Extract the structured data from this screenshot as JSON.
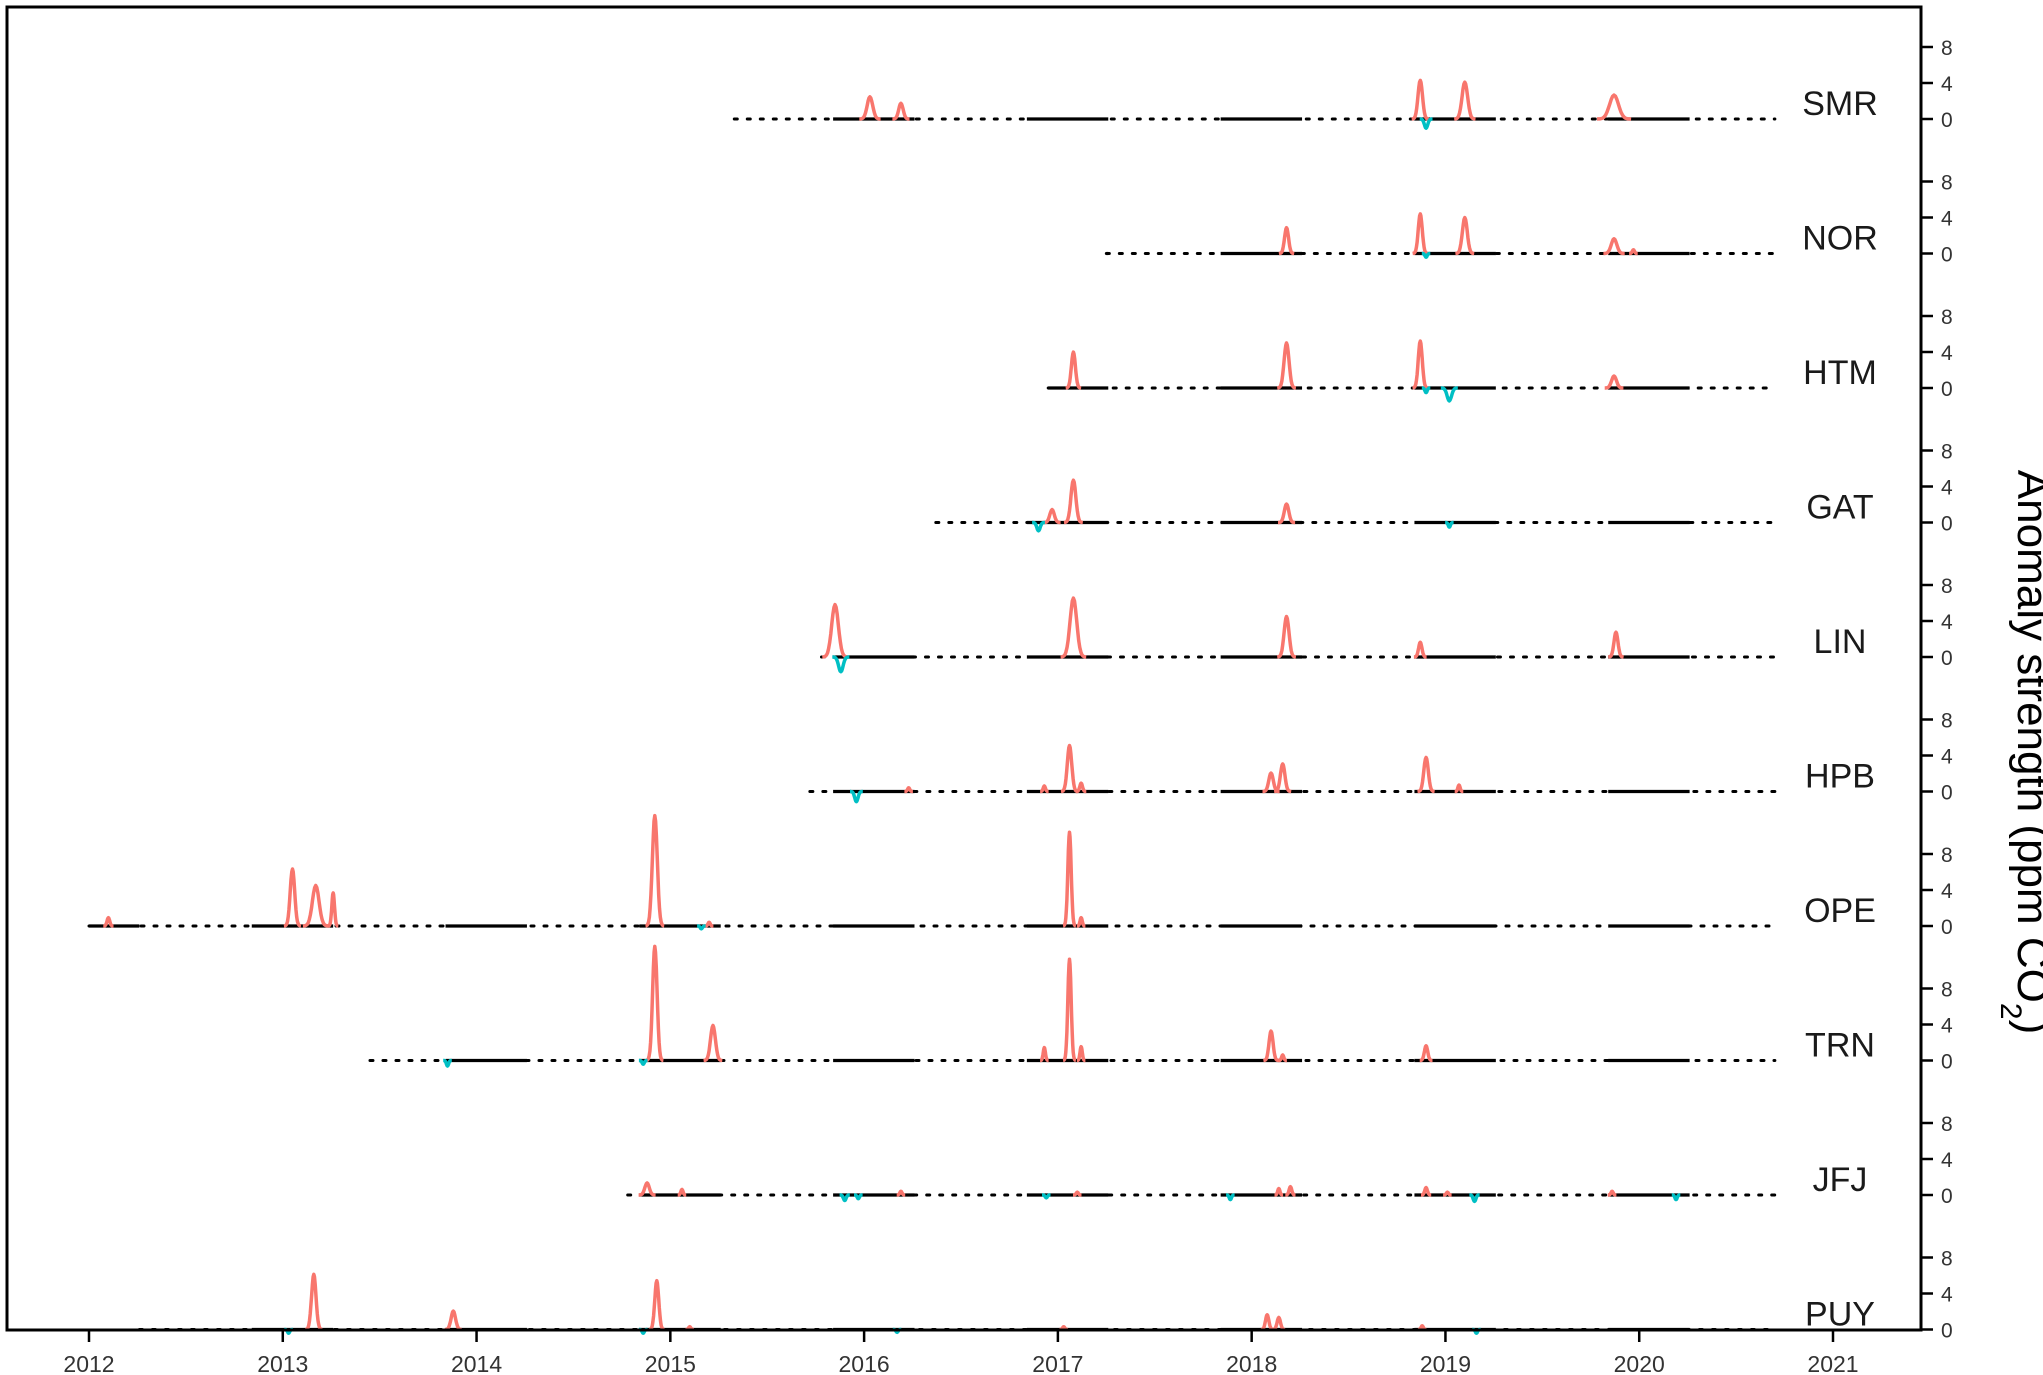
{
  "chart_data": {
    "type": "line",
    "title": "",
    "xlabel": "",
    "ylabel_main": "Anomaly strength (ppm CO",
    "ylabel_sub": "2",
    "ylabel_close": ")",
    "xlim": [
      2012,
      2021
    ],
    "x_ticks": [
      2012,
      2013,
      2014,
      2015,
      2016,
      2017,
      2018,
      2019,
      2020,
      2021
    ],
    "panel_ylim": [
      -1.2,
      10
    ],
    "y_ticks": [
      0,
      4,
      8
    ],
    "grid": false,
    "colors": {
      "positive": "#F8766D",
      "negative": "#00BFC4",
      "coverage": "#000000",
      "axis": "#000000"
    },
    "coverage_note": "solid segments = winter periods with observations; dotted = other periods",
    "winter_windows": [
      [
        2012.0,
        2012.26
      ],
      [
        2012.84,
        2013.26
      ],
      [
        2013.84,
        2014.26
      ],
      [
        2014.84,
        2015.26
      ],
      [
        2015.84,
        2016.26
      ],
      [
        2016.84,
        2017.26
      ],
      [
        2017.84,
        2018.26
      ],
      [
        2018.84,
        2019.26
      ],
      [
        2019.84,
        2020.26
      ]
    ],
    "stations": [
      {
        "name": "SMR",
        "start": 2015.33,
        "end": 2020.7,
        "peaks": [
          {
            "x": 2016.03,
            "h": 2.4,
            "w": 0.025
          },
          {
            "x": 2016.19,
            "h": 1.7,
            "w": 0.02
          },
          {
            "x": 2018.87,
            "h": 4.2,
            "w": 0.02
          },
          {
            "x": 2019.1,
            "h": 4.0,
            "w": 0.025
          },
          {
            "x": 2019.87,
            "h": 2.6,
            "w": 0.04
          }
        ],
        "dips": [
          {
            "x": 2018.9,
            "h": 1.0,
            "w": 0.015
          }
        ]
      },
      {
        "name": "NOR",
        "start": 2017.25,
        "end": 2020.7,
        "peaks": [
          {
            "x": 2018.18,
            "h": 2.8,
            "w": 0.018
          },
          {
            "x": 2018.87,
            "h": 4.3,
            "w": 0.018
          },
          {
            "x": 2019.1,
            "h": 3.9,
            "w": 0.022
          },
          {
            "x": 2019.87,
            "h": 1.6,
            "w": 0.025
          },
          {
            "x": 2019.97,
            "h": 0.4,
            "w": 0.01
          }
        ],
        "dips": [
          {
            "x": 2018.9,
            "h": 0.4,
            "w": 0.01
          }
        ]
      },
      {
        "name": "HTM",
        "start": 2016.95,
        "end": 2020.7,
        "peaks": [
          {
            "x": 2017.08,
            "h": 3.9,
            "w": 0.018
          },
          {
            "x": 2018.18,
            "h": 4.9,
            "w": 0.022
          },
          {
            "x": 2018.87,
            "h": 5.1,
            "w": 0.018
          },
          {
            "x": 2019.87,
            "h": 1.3,
            "w": 0.022
          }
        ],
        "dips": [
          {
            "x": 2018.9,
            "h": 0.5,
            "w": 0.01
          },
          {
            "x": 2019.02,
            "h": 1.4,
            "w": 0.02
          }
        ]
      },
      {
        "name": "GAT",
        "start": 2016.37,
        "end": 2020.7,
        "peaks": [
          {
            "x": 2016.97,
            "h": 1.4,
            "w": 0.02
          },
          {
            "x": 2017.08,
            "h": 4.6,
            "w": 0.022
          },
          {
            "x": 2018.18,
            "h": 2.0,
            "w": 0.02
          }
        ],
        "dips": [
          {
            "x": 2016.9,
            "h": 0.9,
            "w": 0.015
          },
          {
            "x": 2019.02,
            "h": 0.5,
            "w": 0.01
          }
        ]
      },
      {
        "name": "LIN",
        "start": 2015.78,
        "end": 2020.7,
        "peaks": [
          {
            "x": 2015.85,
            "h": 5.7,
            "w": 0.03
          },
          {
            "x": 2017.08,
            "h": 6.4,
            "w": 0.03
          },
          {
            "x": 2018.18,
            "h": 4.4,
            "w": 0.022
          },
          {
            "x": 2018.87,
            "h": 1.6,
            "w": 0.015
          },
          {
            "x": 2019.88,
            "h": 2.7,
            "w": 0.018
          }
        ],
        "dips": [
          {
            "x": 2015.88,
            "h": 1.6,
            "w": 0.02
          }
        ]
      },
      {
        "name": "HPB",
        "start": 2015.72,
        "end": 2020.7,
        "peaks": [
          {
            "x": 2016.23,
            "h": 0.4,
            "w": 0.01
          },
          {
            "x": 2016.93,
            "h": 0.6,
            "w": 0.01
          },
          {
            "x": 2017.06,
            "h": 5.0,
            "w": 0.02
          },
          {
            "x": 2017.12,
            "h": 0.9,
            "w": 0.012
          },
          {
            "x": 2018.1,
            "h": 2.0,
            "w": 0.02
          },
          {
            "x": 2018.16,
            "h": 3.0,
            "w": 0.02
          },
          {
            "x": 2018.9,
            "h": 3.7,
            "w": 0.02
          },
          {
            "x": 2019.07,
            "h": 0.7,
            "w": 0.01
          }
        ],
        "dips": [
          {
            "x": 2015.96,
            "h": 1.1,
            "w": 0.015
          }
        ]
      },
      {
        "name": "OPE",
        "start": 2012.0,
        "end": 2020.7,
        "peaks": [
          {
            "x": 2012.1,
            "h": 0.9,
            "w": 0.012
          },
          {
            "x": 2013.05,
            "h": 6.2,
            "w": 0.02
          },
          {
            "x": 2013.17,
            "h": 4.4,
            "w": 0.03
          },
          {
            "x": 2013.26,
            "h": 3.6,
            "w": 0.012
          },
          {
            "x": 2014.92,
            "h": 12.0,
            "w": 0.022
          },
          {
            "x": 2015.2,
            "h": 0.4,
            "w": 0.01
          },
          {
            "x": 2017.06,
            "h": 10.2,
            "w": 0.015
          },
          {
            "x": 2017.12,
            "h": 0.9,
            "w": 0.01
          }
        ],
        "dips": [
          {
            "x": 2015.16,
            "h": 0.3,
            "w": 0.01
          }
        ]
      },
      {
        "name": "TRN",
        "start": 2013.45,
        "end": 2020.7,
        "peaks": [
          {
            "x": 2014.92,
            "h": 12.4,
            "w": 0.02
          },
          {
            "x": 2015.22,
            "h": 3.8,
            "w": 0.022
          },
          {
            "x": 2016.93,
            "h": 1.4,
            "w": 0.01
          },
          {
            "x": 2017.06,
            "h": 11.0,
            "w": 0.015
          },
          {
            "x": 2017.12,
            "h": 1.5,
            "w": 0.01
          },
          {
            "x": 2018.1,
            "h": 3.2,
            "w": 0.018
          },
          {
            "x": 2018.16,
            "h": 0.6,
            "w": 0.01
          },
          {
            "x": 2018.9,
            "h": 1.6,
            "w": 0.015
          }
        ],
        "dips": [
          {
            "x": 2013.85,
            "h": 0.6,
            "w": 0.01
          },
          {
            "x": 2014.86,
            "h": 0.4,
            "w": 0.01
          }
        ]
      },
      {
        "name": "JFJ",
        "start": 2014.78,
        "end": 2020.7,
        "peaks": [
          {
            "x": 2014.88,
            "h": 1.3,
            "w": 0.02
          },
          {
            "x": 2015.06,
            "h": 0.6,
            "w": 0.01
          },
          {
            "x": 2016.19,
            "h": 0.4,
            "w": 0.01
          },
          {
            "x": 2017.1,
            "h": 0.3,
            "w": 0.01
          },
          {
            "x": 2018.14,
            "h": 0.7,
            "w": 0.01
          },
          {
            "x": 2018.2,
            "h": 0.9,
            "w": 0.012
          },
          {
            "x": 2018.9,
            "h": 0.8,
            "w": 0.012
          },
          {
            "x": 2019.01,
            "h": 0.3,
            "w": 0.01
          },
          {
            "x": 2019.86,
            "h": 0.4,
            "w": 0.01
          }
        ],
        "dips": [
          {
            "x": 2015.9,
            "h": 0.6,
            "w": 0.012
          },
          {
            "x": 2015.97,
            "h": 0.4,
            "w": 0.01
          },
          {
            "x": 2016.94,
            "h": 0.3,
            "w": 0.01
          },
          {
            "x": 2017.89,
            "h": 0.5,
            "w": 0.01
          },
          {
            "x": 2019.15,
            "h": 0.7,
            "w": 0.012
          },
          {
            "x": 2020.19,
            "h": 0.5,
            "w": 0.01
          }
        ]
      },
      {
        "name": "PUY",
        "start": 2012.26,
        "end": 2020.7,
        "peaks": [
          {
            "x": 2013.16,
            "h": 6.0,
            "w": 0.02
          },
          {
            "x": 2013.88,
            "h": 2.0,
            "w": 0.02
          },
          {
            "x": 2014.93,
            "h": 5.3,
            "w": 0.018
          },
          {
            "x": 2015.1,
            "h": 0.3,
            "w": 0.01
          },
          {
            "x": 2017.03,
            "h": 0.3,
            "w": 0.01
          },
          {
            "x": 2018.08,
            "h": 1.6,
            "w": 0.015
          },
          {
            "x": 2018.14,
            "h": 1.3,
            "w": 0.015
          },
          {
            "x": 2018.88,
            "h": 0.4,
            "w": 0.01
          }
        ],
        "dips": [
          {
            "x": 2013.03,
            "h": 0.4,
            "w": 0.01
          },
          {
            "x": 2014.86,
            "h": 0.4,
            "w": 0.01
          },
          {
            "x": 2016.17,
            "h": 0.3,
            "w": 0.01
          },
          {
            "x": 2019.16,
            "h": 0.4,
            "w": 0.01
          }
        ]
      }
    ]
  }
}
